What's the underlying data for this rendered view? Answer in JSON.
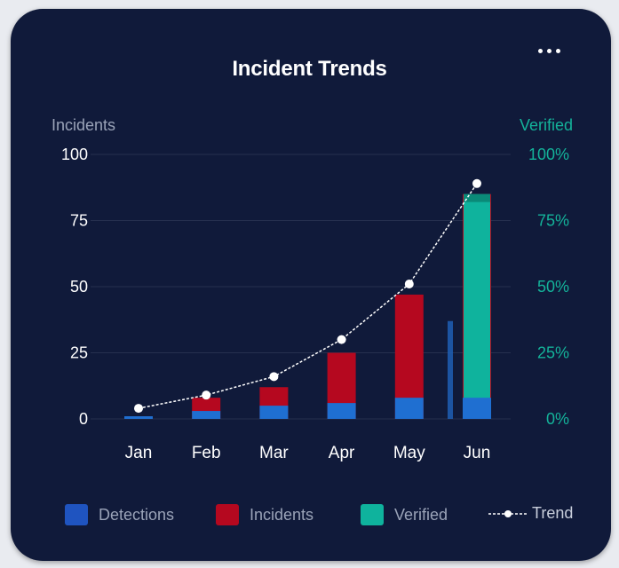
{
  "chart_data": {
    "type": "bar",
    "title": "Incident Trends",
    "categories": [
      "Jan",
      "Feb",
      "Mar",
      "Apr",
      "May",
      "Jun"
    ],
    "y_left": {
      "label": "Incidents",
      "min": 0,
      "max": 100,
      "ticks": [
        "0",
        "25",
        "50",
        "75",
        "100"
      ]
    },
    "y_right": {
      "label": "Verified",
      "min": 0,
      "max": 100,
      "ticks": [
        "0%",
        "25%",
        "50%",
        "75%",
        "100%"
      ]
    },
    "series": [
      {
        "name": "Detections",
        "kind": "bar",
        "color": "#1f6fd1",
        "values": [
          1,
          3,
          5,
          6,
          8,
          8
        ]
      },
      {
        "name": "Incidents",
        "kind": "bar",
        "color": "#b5081f",
        "values": [
          1,
          8,
          12,
          25,
          47,
          85
        ]
      },
      {
        "name": "Verified",
        "kind": "bar",
        "axis": "right",
        "color": "#0fb39d",
        "values": [
          0,
          0,
          0,
          0,
          0,
          85
        ]
      },
      {
        "name": "Trend",
        "kind": "line",
        "color": "#ffffff",
        "values": [
          4,
          9,
          16,
          30,
          51,
          89
        ]
      }
    ],
    "grid": true,
    "legend": "bottom"
  },
  "legend": {
    "detections": "Detections",
    "incidents": "Incidents",
    "verified": "Verified",
    "trend": "Trend"
  },
  "colors": {
    "card": "#101a3a",
    "detections": "#1f6fd1",
    "incidents": "#b5081f",
    "verified": "#0fb39d",
    "axis_left_label": "#9aa3b8",
    "axis_right": "#14b39a"
  }
}
